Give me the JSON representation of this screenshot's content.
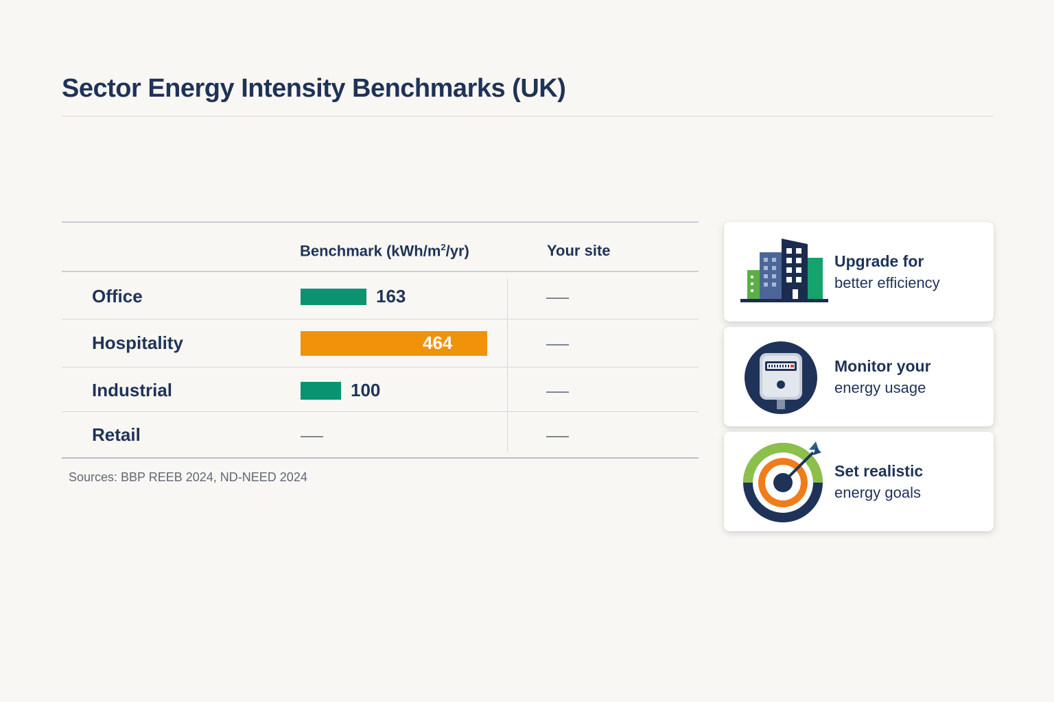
{
  "title": "Sector Energy Intensity Benchmarks (UK)",
  "table": {
    "col_benchmark": "Benchmark (kWh/m",
    "col_benchmark_sup": "2",
    "col_benchmark_tail": "/yr)",
    "col_your_site": "Your site",
    "dash": "—",
    "sources": "Sources: BBP REEB 2024, ND-NEED 2024"
  },
  "chart_data": {
    "type": "bar",
    "title": "Sector Energy Intensity Benchmarks (UK)",
    "xlabel": "",
    "ylabel": "Benchmark (kWh/m2/yr)",
    "categories": [
      "Office",
      "Hospitality",
      "Industrial",
      "Retail"
    ],
    "values": [
      163,
      464,
      100,
      null
    ],
    "labels": [
      "163",
      "464",
      "100",
      ""
    ],
    "bar_colors": [
      "#0a9370",
      "#f0920a",
      "#0a9370",
      null
    ],
    "your_site": [
      null,
      null,
      null,
      null
    ],
    "orientation": "horizontal"
  },
  "cards": [
    {
      "line1": "Upgrade for",
      "line2": "better efficiency",
      "icon": "building-icon"
    },
    {
      "line1": "Monitor your",
      "line2": "energy usage",
      "icon": "meter-icon"
    },
    {
      "line1": "Set realistic",
      "line2": "energy goals",
      "icon": "target-icon"
    }
  ],
  "colors": {
    "navy": "#1f3358",
    "green": "#0a9370",
    "orange": "#f0920a",
    "background": "#f9f7f3"
  }
}
